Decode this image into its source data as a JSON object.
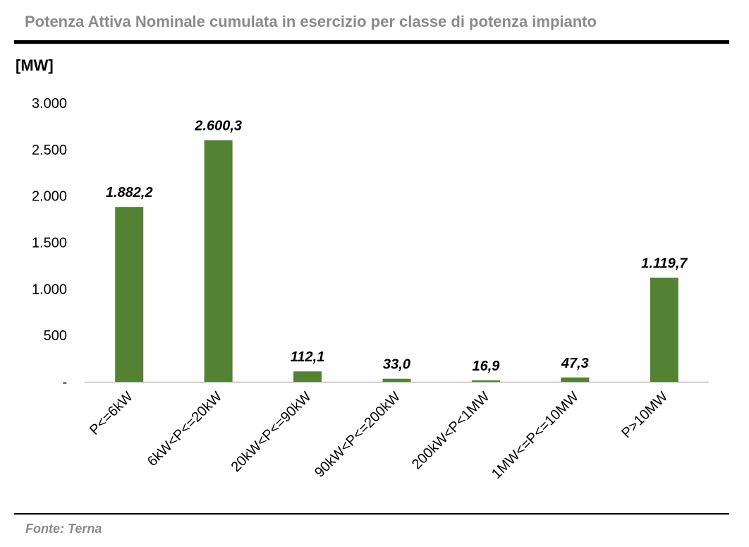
{
  "chart_data": {
    "type": "bar",
    "title": "Potenza Attiva Nominale cumulata in esercizio per classe di potenza impianto",
    "ylabel": "[MW]",
    "xlabel": "",
    "categories": [
      "P<=6kW",
      "6kW<P<=20kW",
      "20kW<P<=90kW",
      "90kW<P<=200kW",
      "200kW<P<1MW",
      "1MW<=P<=10MW",
      "P>10MW"
    ],
    "values": [
      1882.2,
      2600.3,
      112.1,
      33.0,
      16.9,
      47.3,
      1119.7
    ],
    "data_labels": [
      "1.882,2",
      "2.600,3",
      "112,1",
      "33,0",
      "16,9",
      "47,3",
      "1.119,7"
    ],
    "ylim": [
      0,
      3000
    ],
    "yticks": [
      0,
      500,
      1000,
      1500,
      2000,
      2500,
      3000
    ],
    "ytick_labels": [
      "-",
      "500",
      "1.000",
      "1.500",
      "2.000",
      "2.500",
      "3.000"
    ],
    "grid": false,
    "bar_color": "#548235"
  },
  "source": "Fonte: Terna"
}
